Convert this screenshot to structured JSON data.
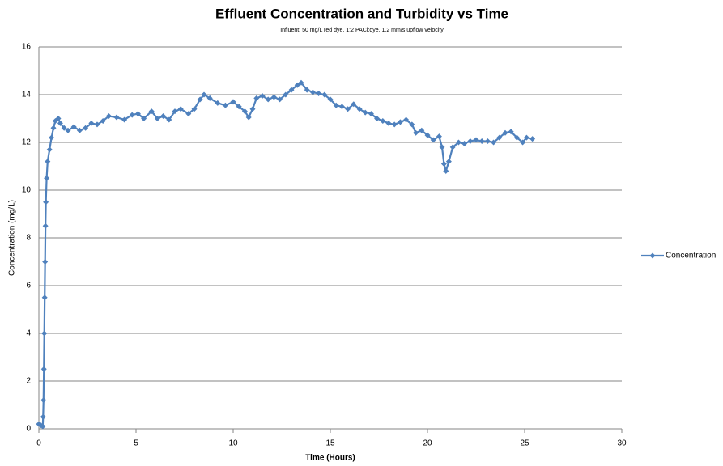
{
  "chart_data": {
    "type": "line",
    "title": "Effluent Concentration and Turbidity vs Time",
    "subtitle": "Influent: 50 mg/L red dye, 1:2 PACl:dye, 1.2 mm/s upflow velocity",
    "x_label": "Time (Hours)",
    "y_label": "Concentration  (mg/L)",
    "x": [
      0,
      0.1,
      0.2,
      0.22,
      0.24,
      0.26,
      0.28,
      0.3,
      0.32,
      0.34,
      0.36,
      0.4,
      0.45,
      0.55,
      0.65,
      0.75,
      0.85,
      1.0,
      1.1,
      1.3,
      1.5,
      1.8,
      2.1,
      2.4,
      2.7,
      3.0,
      3.3,
      3.6,
      4.0,
      4.4,
      4.8,
      5.1,
      5.4,
      5.8,
      6.1,
      6.4,
      6.7,
      7.0,
      7.3,
      7.7,
      8.0,
      8.3,
      8.5,
      8.8,
      9.2,
      9.6,
      10.0,
      10.3,
      10.6,
      10.8,
      11.0,
      11.2,
      11.5,
      11.8,
      12.1,
      12.4,
      12.7,
      13.0,
      13.3,
      13.5,
      13.8,
      14.1,
      14.4,
      14.7,
      15.0,
      15.3,
      15.6,
      15.9,
      16.2,
      16.5,
      16.8,
      17.1,
      17.4,
      17.7,
      18.0,
      18.3,
      18.6,
      18.9,
      19.2,
      19.4,
      19.7,
      20.0,
      20.3,
      20.6,
      20.75,
      20.85,
      20.95,
      21.1,
      21.3,
      21.6,
      21.9,
      22.2,
      22.5,
      22.8,
      23.1,
      23.4,
      23.7,
      24.0,
      24.3,
      24.6,
      24.9,
      25.1,
      25.4
    ],
    "series": [
      {
        "name": "Concentration",
        "color": "#4f81bd",
        "values": [
          0.2,
          0.15,
          0.1,
          0.5,
          1.2,
          2.5,
          4,
          5.5,
          7,
          8.5,
          9.5,
          10.5,
          11.2,
          11.7,
          12.2,
          12.6,
          12.9,
          13.0,
          12.8,
          12.6,
          12.5,
          12.65,
          12.5,
          12.6,
          12.8,
          12.75,
          12.9,
          13.1,
          13.05,
          12.95,
          13.15,
          13.2,
          13.0,
          13.3,
          13.0,
          13.1,
          12.95,
          13.3,
          13.4,
          13.2,
          13.4,
          13.8,
          14.0,
          13.85,
          13.65,
          13.55,
          13.7,
          13.5,
          13.3,
          13.05,
          13.4,
          13.85,
          13.95,
          13.8,
          13.9,
          13.8,
          14.0,
          14.2,
          14.4,
          14.5,
          14.2,
          14.1,
          14.05,
          14.0,
          13.8,
          13.55,
          13.5,
          13.4,
          13.6,
          13.4,
          13.25,
          13.2,
          13.0,
          12.9,
          12.8,
          12.75,
          12.85,
          12.95,
          12.75,
          12.4,
          12.5,
          12.3,
          12.1,
          12.25,
          11.8,
          11.1,
          10.8,
          11.2,
          11.8,
          12.0,
          11.95,
          12.05,
          12.1,
          12.05,
          12.05,
          12.0,
          12.2,
          12.4,
          12.45,
          12.2,
          12.0,
          12.2,
          12.15
        ]
      }
    ],
    "xlim": [
      0,
      30
    ],
    "xticks": [
      0,
      5,
      10,
      15,
      20,
      25,
      30
    ],
    "ylim": [
      0,
      16
    ],
    "yticks": [
      0,
      2,
      4,
      6,
      8,
      10,
      12,
      14,
      16
    ],
    "grid": true,
    "legend": "right"
  }
}
